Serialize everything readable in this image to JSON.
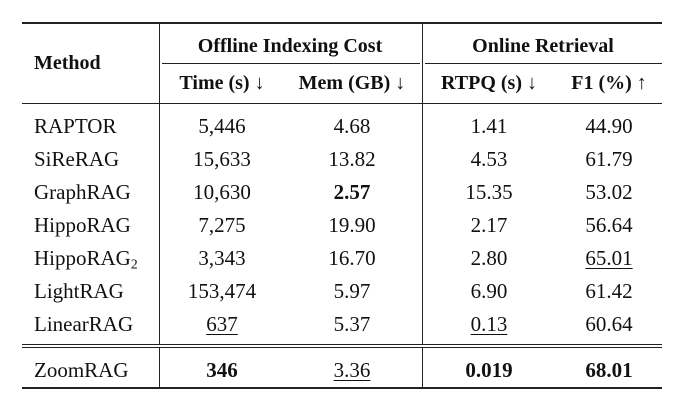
{
  "header": {
    "method": "Method",
    "group_offline": "Offline Indexing Cost",
    "group_online": "Online Retrieval",
    "columns": [
      "Time (s) ↓",
      "Mem (GB) ↓",
      "RTPQ (s) ↓",
      "F1 (%) ↑"
    ]
  },
  "rows": [
    {
      "method": "RAPTOR",
      "sub": "",
      "time": "5,446",
      "mem": "4.68",
      "rtpq": "1.41",
      "f1": "44.90"
    },
    {
      "method": "SiReRAG",
      "sub": "",
      "time": "15,633",
      "mem": "13.82",
      "rtpq": "4.53",
      "f1": "61.79"
    },
    {
      "method": "GraphRAG",
      "sub": "",
      "time": "10,630",
      "mem": "2.57",
      "rtpq": "15.35",
      "f1": "53.02"
    },
    {
      "method": "HippoRAG",
      "sub": "",
      "time": "7,275",
      "mem": "19.90",
      "rtpq": "2.17",
      "f1": "56.64"
    },
    {
      "method": "HippoRAG",
      "sub": "2",
      "time": "3,343",
      "mem": "16.70",
      "rtpq": "2.80",
      "f1": "65.01"
    },
    {
      "method": "LightRAG",
      "sub": "",
      "time": "153,474",
      "mem": "5.97",
      "rtpq": "6.90",
      "f1": "61.42"
    },
    {
      "method": "LinearRAG",
      "sub": "",
      "time": "637",
      "mem": "5.37",
      "rtpq": "0.13",
      "f1": "60.64"
    }
  ],
  "final_row": {
    "method": "ZoomRAG",
    "time": "346",
    "mem": "3.36",
    "rtpq": "0.019",
    "f1": "68.01"
  }
}
